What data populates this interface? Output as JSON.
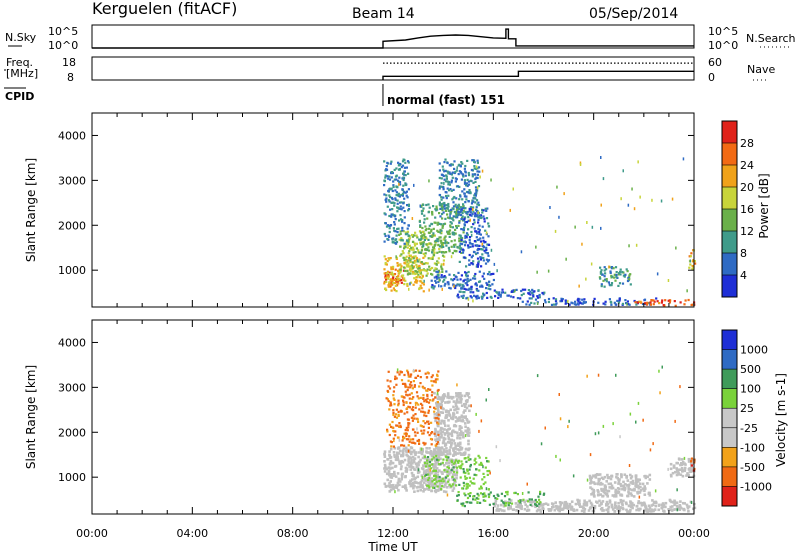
{
  "header": {
    "station": "Kerguelen (fitACF)",
    "beam": "Beam 14",
    "date": "05/Sep/2014"
  },
  "nsky_panel": {
    "left_label": "N.Sky",
    "right_label": "N.Search",
    "left_ticks": [
      "10^5",
      "10^0"
    ],
    "right_ticks": [
      "10^5",
      "10^0"
    ]
  },
  "freq_panel": {
    "left_label_line1": "Freq.",
    "left_label_line2": "[MHz]",
    "right_label": "Nave",
    "left_ticks": [
      "18",
      "8"
    ],
    "right_ticks": [
      "60",
      "0"
    ]
  },
  "cpid_panel": {
    "label": "CPID",
    "mode_text": "normal (fast) 151"
  },
  "x_axis": {
    "label": "Time UT",
    "tick_labels": [
      "00:00",
      "04:00",
      "08:00",
      "12:00",
      "16:00",
      "20:00",
      "00:00"
    ]
  },
  "colors": {
    "power": [
      "#1f2fd6",
      "#2f6bc4",
      "#3f9b8a",
      "#6ab04a",
      "#c8d43a",
      "#f0a21a",
      "#f26a14",
      "#e0221a"
    ],
    "velocity": [
      "#e0221a",
      "#f06a14",
      "#f2a21a",
      "#c8c8c8",
      "#c8c8c8",
      "#7ad23a",
      "#3f9b5a",
      "#2f6bc4",
      "#1f2fd6"
    ],
    "ground_scatter": "#c0c0c0"
  },
  "chart_data": [
    {
      "type": "line",
      "title": "N.Sky / N.Search",
      "x_unit": "hours UT",
      "xlim": [
        0,
        24
      ],
      "ylim_log10": [
        0,
        5
      ],
      "series": [
        {
          "name": "N.Sky",
          "style": "solid",
          "x": [
            0,
            11.6,
            11.6,
            12.5,
            13.0,
            13.5,
            14.0,
            14.5,
            15.0,
            15.5,
            16.0,
            16.5,
            16.5,
            16.6,
            16.6,
            16.9,
            16.9,
            24.0
          ],
          "y": [
            0,
            0,
            1.6,
            1.9,
            2.4,
            2.8,
            3.0,
            3.1,
            3.0,
            2.7,
            2.4,
            2.3,
            4.5,
            4.5,
            2.2,
            2.2,
            0.5,
            0.5
          ]
        }
      ]
    },
    {
      "type": "line",
      "title": "Freq. / Nave",
      "x_unit": "hours UT",
      "xlim": [
        0,
        24
      ],
      "series": [
        {
          "name": "Freq.",
          "style": "solid",
          "y_range": [
            8,
            18
          ],
          "x": [
            11.6,
            11.6,
            17.0,
            17.0,
            24.0
          ],
          "y": [
            8,
            9.6,
            9.6,
            11.8,
            11.8
          ]
        },
        {
          "name": "Nave",
          "style": "dotted",
          "y_range": [
            0,
            60
          ],
          "x": [
            11.6,
            24.0
          ],
          "y": [
            44,
            44
          ]
        }
      ]
    },
    {
      "type": "heatmap",
      "title": "Power",
      "xlim": [
        0,
        24
      ],
      "ylim": [
        180,
        4500
      ],
      "ylabel": "Slant Range [km]",
      "yticks": [
        1000,
        2000,
        3000,
        4000
      ],
      "colorbar_label": "Power [dB]",
      "colorbar_ticks": [
        "4",
        "8",
        "12",
        "16",
        "20",
        "24",
        "28"
      ],
      "vmin": 0,
      "vmax": 32,
      "regions": [
        {
          "t0": 11.6,
          "t1": 12.4,
          "r0": 650,
          "r1": 1050,
          "value": 29
        },
        {
          "t0": 11.6,
          "t1": 13.2,
          "r0": 550,
          "r1": 1350,
          "value": 20
        },
        {
          "t0": 12.2,
          "t1": 14.0,
          "r0": 900,
          "r1": 1900,
          "value": 16
        },
        {
          "t0": 13.0,
          "t1": 14.8,
          "r0": 1400,
          "r1": 2500,
          "value": 12
        },
        {
          "t0": 13.8,
          "t1": 15.4,
          "r0": 2200,
          "r1": 3500,
          "value": 8
        },
        {
          "t0": 11.6,
          "t1": 12.6,
          "r0": 1600,
          "r1": 3500,
          "value": 8
        },
        {
          "t0": 14.6,
          "t1": 15.8,
          "r0": 1100,
          "r1": 2400,
          "value": 6
        },
        {
          "t0": 13.5,
          "t1": 16.0,
          "r0": 600,
          "r1": 1000,
          "value": 6
        },
        {
          "t0": 14.5,
          "t1": 18.0,
          "r0": 380,
          "r1": 620,
          "value": 6
        },
        {
          "t0": 17.0,
          "t1": 22.5,
          "r0": 250,
          "r1": 400,
          "value": 5
        },
        {
          "t0": 20.2,
          "t1": 21.5,
          "r0": 650,
          "r1": 1100,
          "value": 10
        },
        {
          "t0": 21.5,
          "t1": 24.0,
          "r0": 230,
          "r1": 360,
          "value": 27
        },
        {
          "t0": 23.7,
          "t1": 24.0,
          "r0": 1050,
          "r1": 1500,
          "value": 22
        }
      ]
    },
    {
      "type": "heatmap",
      "title": "Velocity",
      "xlim": [
        0,
        24
      ],
      "ylim": [
        180,
        4500
      ],
      "ylabel": "Slant Range [km]",
      "yticks": [
        1000,
        2000,
        3000,
        4000
      ],
      "colorbar_label": "Velocity [m s-1]",
      "colorbar_ticks": [
        "-1000",
        "-500",
        "-100",
        "-25",
        "25",
        "100",
        "500",
        "1000"
      ],
      "ground_scatter_regions": [
        {
          "t0": 11.6,
          "t1": 14.5,
          "r0": 700,
          "r1": 1700
        },
        {
          "t0": 13.6,
          "t1": 15.0,
          "r0": 1500,
          "r1": 2900
        },
        {
          "t0": 16.0,
          "t1": 24.0,
          "r0": 260,
          "r1": 520
        },
        {
          "t0": 19.8,
          "t1": 22.2,
          "r0": 600,
          "r1": 1100
        },
        {
          "t0": 23.0,
          "t1": 24.0,
          "r0": 1050,
          "r1": 1450
        }
      ],
      "regions": [
        {
          "t0": 13.2,
          "t1": 15.8,
          "r0": 750,
          "r1": 1500,
          "value": 80
        },
        {
          "t0": 14.5,
          "t1": 18.0,
          "r0": 380,
          "r1": 700,
          "value": 100
        },
        {
          "t0": 11.7,
          "t1": 13.8,
          "r0": 1700,
          "r1": 3400,
          "value": -120
        },
        {
          "t0": 23.8,
          "t1": 24.0,
          "r0": 1150,
          "r1": 1450,
          "value": -400
        }
      ]
    }
  ]
}
